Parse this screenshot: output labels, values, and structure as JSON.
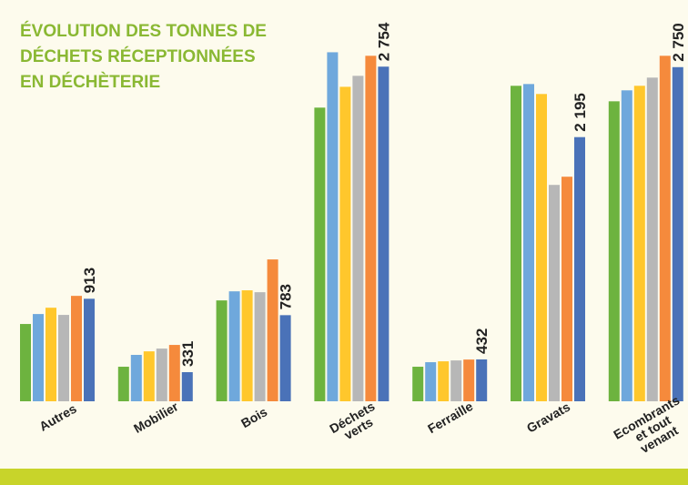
{
  "chart_data": {
    "type": "bar",
    "title": "ÉVOLUTION DES TONNES DE DÉCHETS RÉCEPTIONNÉES EN DÉCHÈTERIE",
    "categories": [
      "Autres",
      "Mobilier",
      "Bois",
      "Déchets verts",
      "Ferraille",
      "Gravats",
      "Ecombrants et tout venant"
    ],
    "ylim": [
      100,
      2900
    ],
    "series": [
      {
        "color": "#6db33f",
        "values": [
          713,
          374,
          900,
          2429,
          374,
          2602,
          2479
        ]
      },
      {
        "color": "#6fa8dc",
        "values": [
          792,
          468,
          972,
          2868,
          410,
          2616,
          2566
        ]
      },
      {
        "color": "#ffc72c",
        "values": [
          842,
          496,
          980,
          2594,
          417,
          2537,
          2602
        ]
      },
      {
        "color": "#b7b7b7",
        "values": [
          785,
          518,
          965,
          2681,
          424,
          1816,
          2667
        ]
      },
      {
        "color": "#f58a3c",
        "values": [
          936,
          547,
          1225,
          2840,
          431,
          1881,
          2840
        ]
      },
      {
        "color": "#4a72b8",
        "values": [
          913,
          331,
          783,
          2754,
          432,
          2195,
          2750
        ],
        "value_labels": [
          "913",
          "331",
          "783",
          "2 754",
          "432",
          "2 195",
          "2 750"
        ]
      }
    ]
  }
}
